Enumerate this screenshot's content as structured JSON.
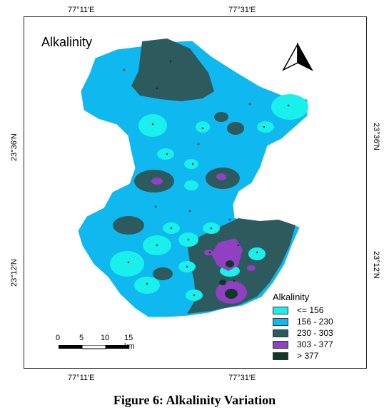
{
  "map": {
    "title": "Alkalinity",
    "coordinates": {
      "top_left_lon": "77°11′E",
      "top_right_lon": "77°31′E",
      "bottom_left_lon": "77°11′E",
      "bottom_right_lon": "77°31′E",
      "left_upper_lat": "23°36′N",
      "left_lower_lat": "23°12′N",
      "right_upper_lat": "23°36′N",
      "right_lower_lat": "23°12′N"
    },
    "colors": {
      "class1": "#19f0ec",
      "class2": "#0fb8ee",
      "class3": "#2d5a5d",
      "class4": "#9040c0",
      "class5": "#0d3a26"
    }
  },
  "legend": {
    "title": "Alkalinity",
    "items": [
      {
        "label": "<= 156",
        "color": "#19f0ec"
      },
      {
        "label": "156 - 230",
        "color": "#0fb8ee"
      },
      {
        "label": "230 - 303",
        "color": "#2d5a5d"
      },
      {
        "label": "303 - 377",
        "color": "#9040c0"
      },
      {
        "label": "> 377",
        "color": "#0d3a26"
      }
    ]
  },
  "scale": {
    "labels": [
      "0",
      "5",
      "10",
      "15 km"
    ]
  },
  "caption": "Figure 6: Alkalinity Variation"
}
